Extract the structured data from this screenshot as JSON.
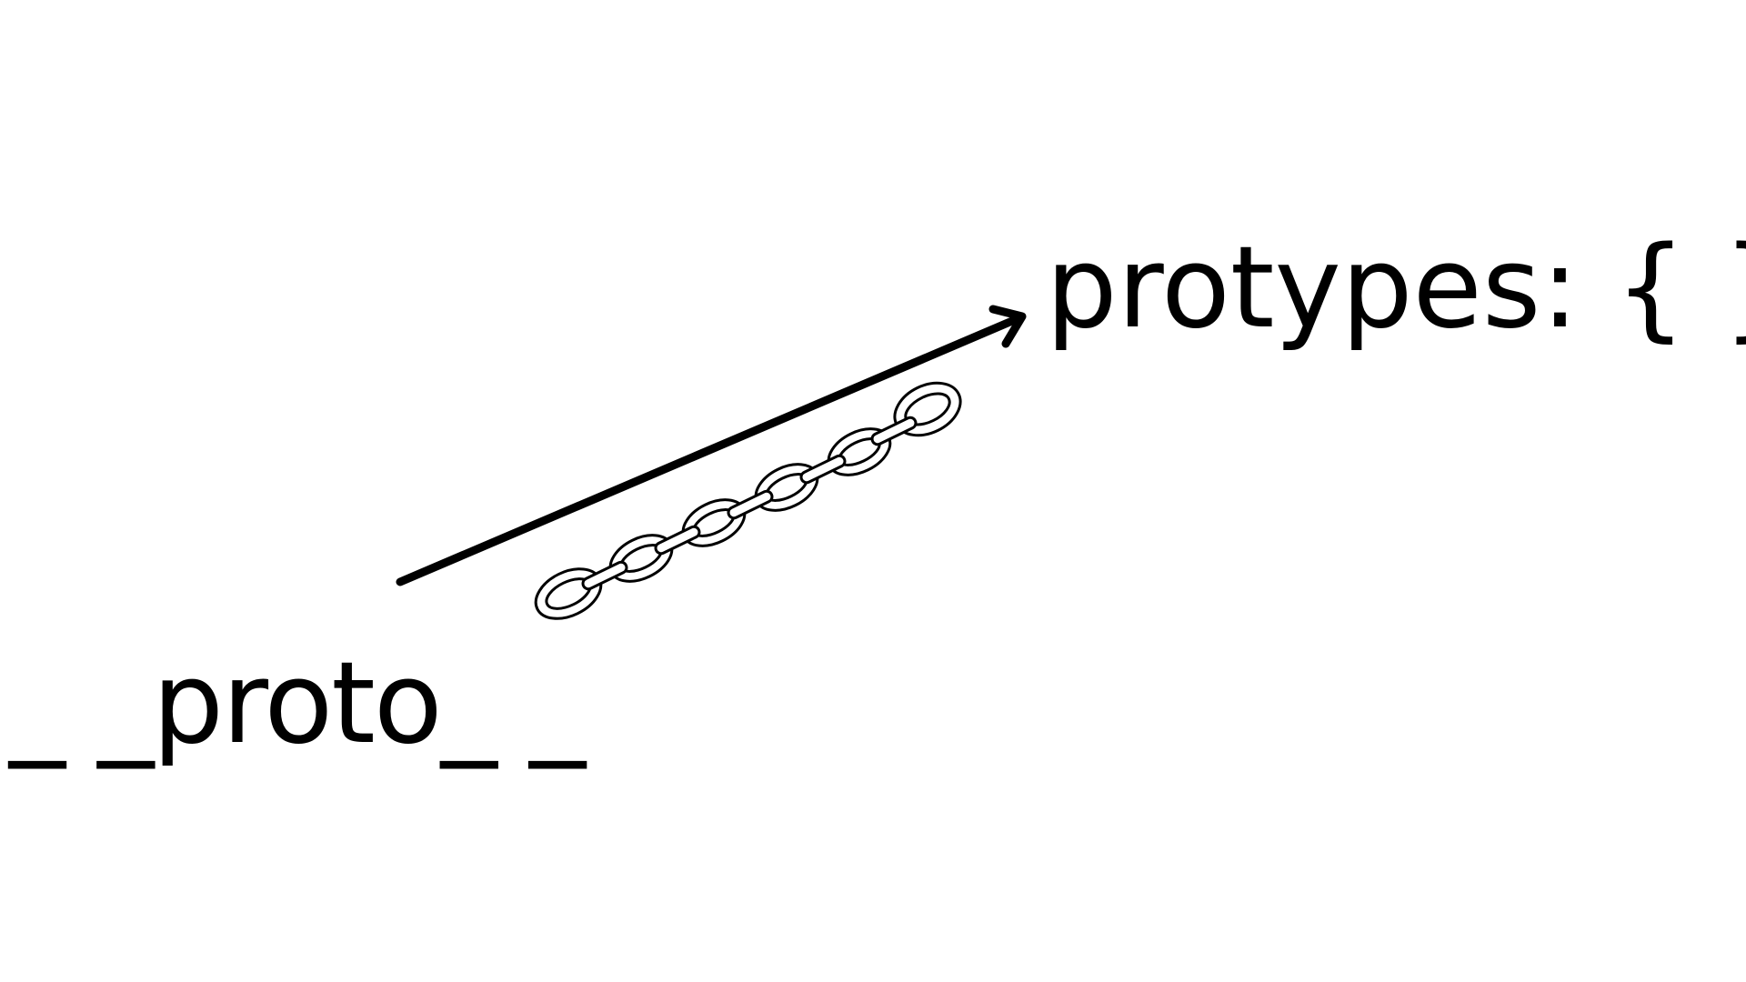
{
  "diagram": {
    "target_label": "protypes: { }",
    "source_label": "_ _proto_ _"
  },
  "icons": {
    "connector": "arrow-icon",
    "link": "chain-icon"
  },
  "colors": {
    "background": "#ffffff",
    "ink": "#000000"
  }
}
